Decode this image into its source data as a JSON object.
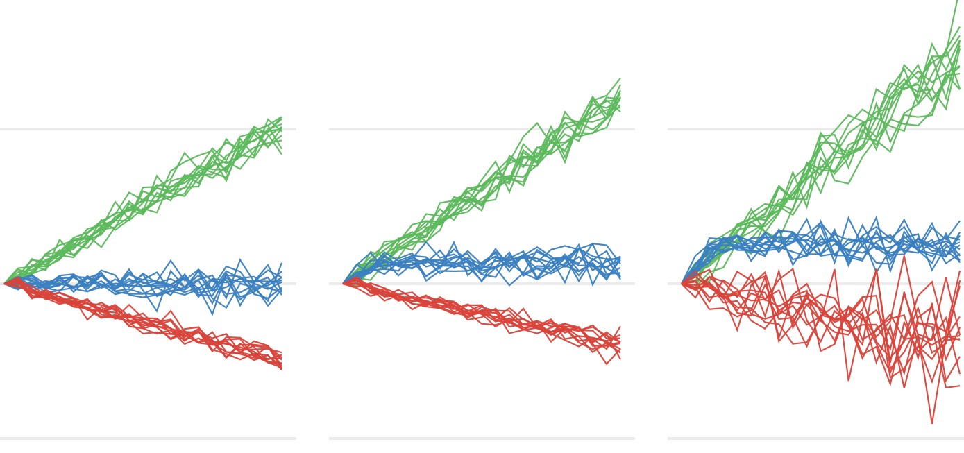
{
  "chart_data": [
    {
      "type": "line",
      "title": "",
      "x": [
        0,
        1,
        2,
        3,
        4,
        5,
        6,
        7,
        8,
        9,
        10,
        11,
        12,
        13,
        14,
        15,
        16,
        17,
        18,
        19,
        20
      ],
      "xlim": [
        0,
        20
      ],
      "ylim": [
        -10,
        10
      ],
      "grid": true,
      "gridlines_y": [
        0,
        10
      ],
      "colors": {
        "up": "#5cb85c",
        "flat": "#3a7fc1",
        "down": "#d9433a",
        "grid": "#ebebeb"
      },
      "groups": [
        {
          "key": "up",
          "runs": 12,
          "final_mean": 10.0,
          "noise": 0.55
        },
        {
          "key": "flat",
          "runs": 12,
          "final_mean": 0.0,
          "noise": 0.45
        },
        {
          "key": "down",
          "runs": 12,
          "final_mean": -5.0,
          "noise": 0.3
        }
      ]
    },
    {
      "type": "line",
      "title": "",
      "x": [
        0,
        1,
        2,
        3,
        4,
        5,
        6,
        7,
        8,
        9,
        10,
        11,
        12,
        13,
        14,
        15,
        16,
        17,
        18,
        19,
        20
      ],
      "xlim": [
        0,
        20
      ],
      "ylim": [
        -10,
        10
      ],
      "grid": true,
      "gridlines_y": [
        0,
        10
      ],
      "colors": {
        "up": "#5cb85c",
        "flat": "#3a7fc1",
        "down": "#d9433a",
        "grid": "#ebebeb"
      },
      "groups": [
        {
          "key": "up",
          "runs": 12,
          "final_mean": 12.0,
          "noise": 0.6
        },
        {
          "key": "flat",
          "runs": 12,
          "final_mean": 1.3,
          "noise": 0.5
        },
        {
          "key": "down",
          "runs": 12,
          "final_mean": -4.1,
          "noise": 0.3
        }
      ]
    },
    {
      "type": "line",
      "title": "",
      "x": [
        0,
        1,
        2,
        3,
        4,
        5,
        6,
        7,
        8,
        9,
        10,
        11,
        12,
        13,
        14,
        15,
        16,
        17,
        18,
        19,
        20
      ],
      "xlim": [
        0,
        20
      ],
      "ylim": [
        -10,
        10
      ],
      "grid": true,
      "gridlines_y": [
        0,
        10
      ],
      "colors": {
        "up": "#5cb85c",
        "flat": "#3a7fc1",
        "down": "#d9433a",
        "grid": "#ebebeb"
      },
      "groups": [
        {
          "key": "up",
          "runs": 12,
          "final_mean": 15.0,
          "noise": 0.9
        },
        {
          "key": "flat",
          "runs": 12,
          "final_mean": 2.7,
          "noise": 0.6
        },
        {
          "key": "down",
          "runs": 12,
          "final_mean": -4.0,
          "noise": 0.8
        }
      ]
    }
  ]
}
